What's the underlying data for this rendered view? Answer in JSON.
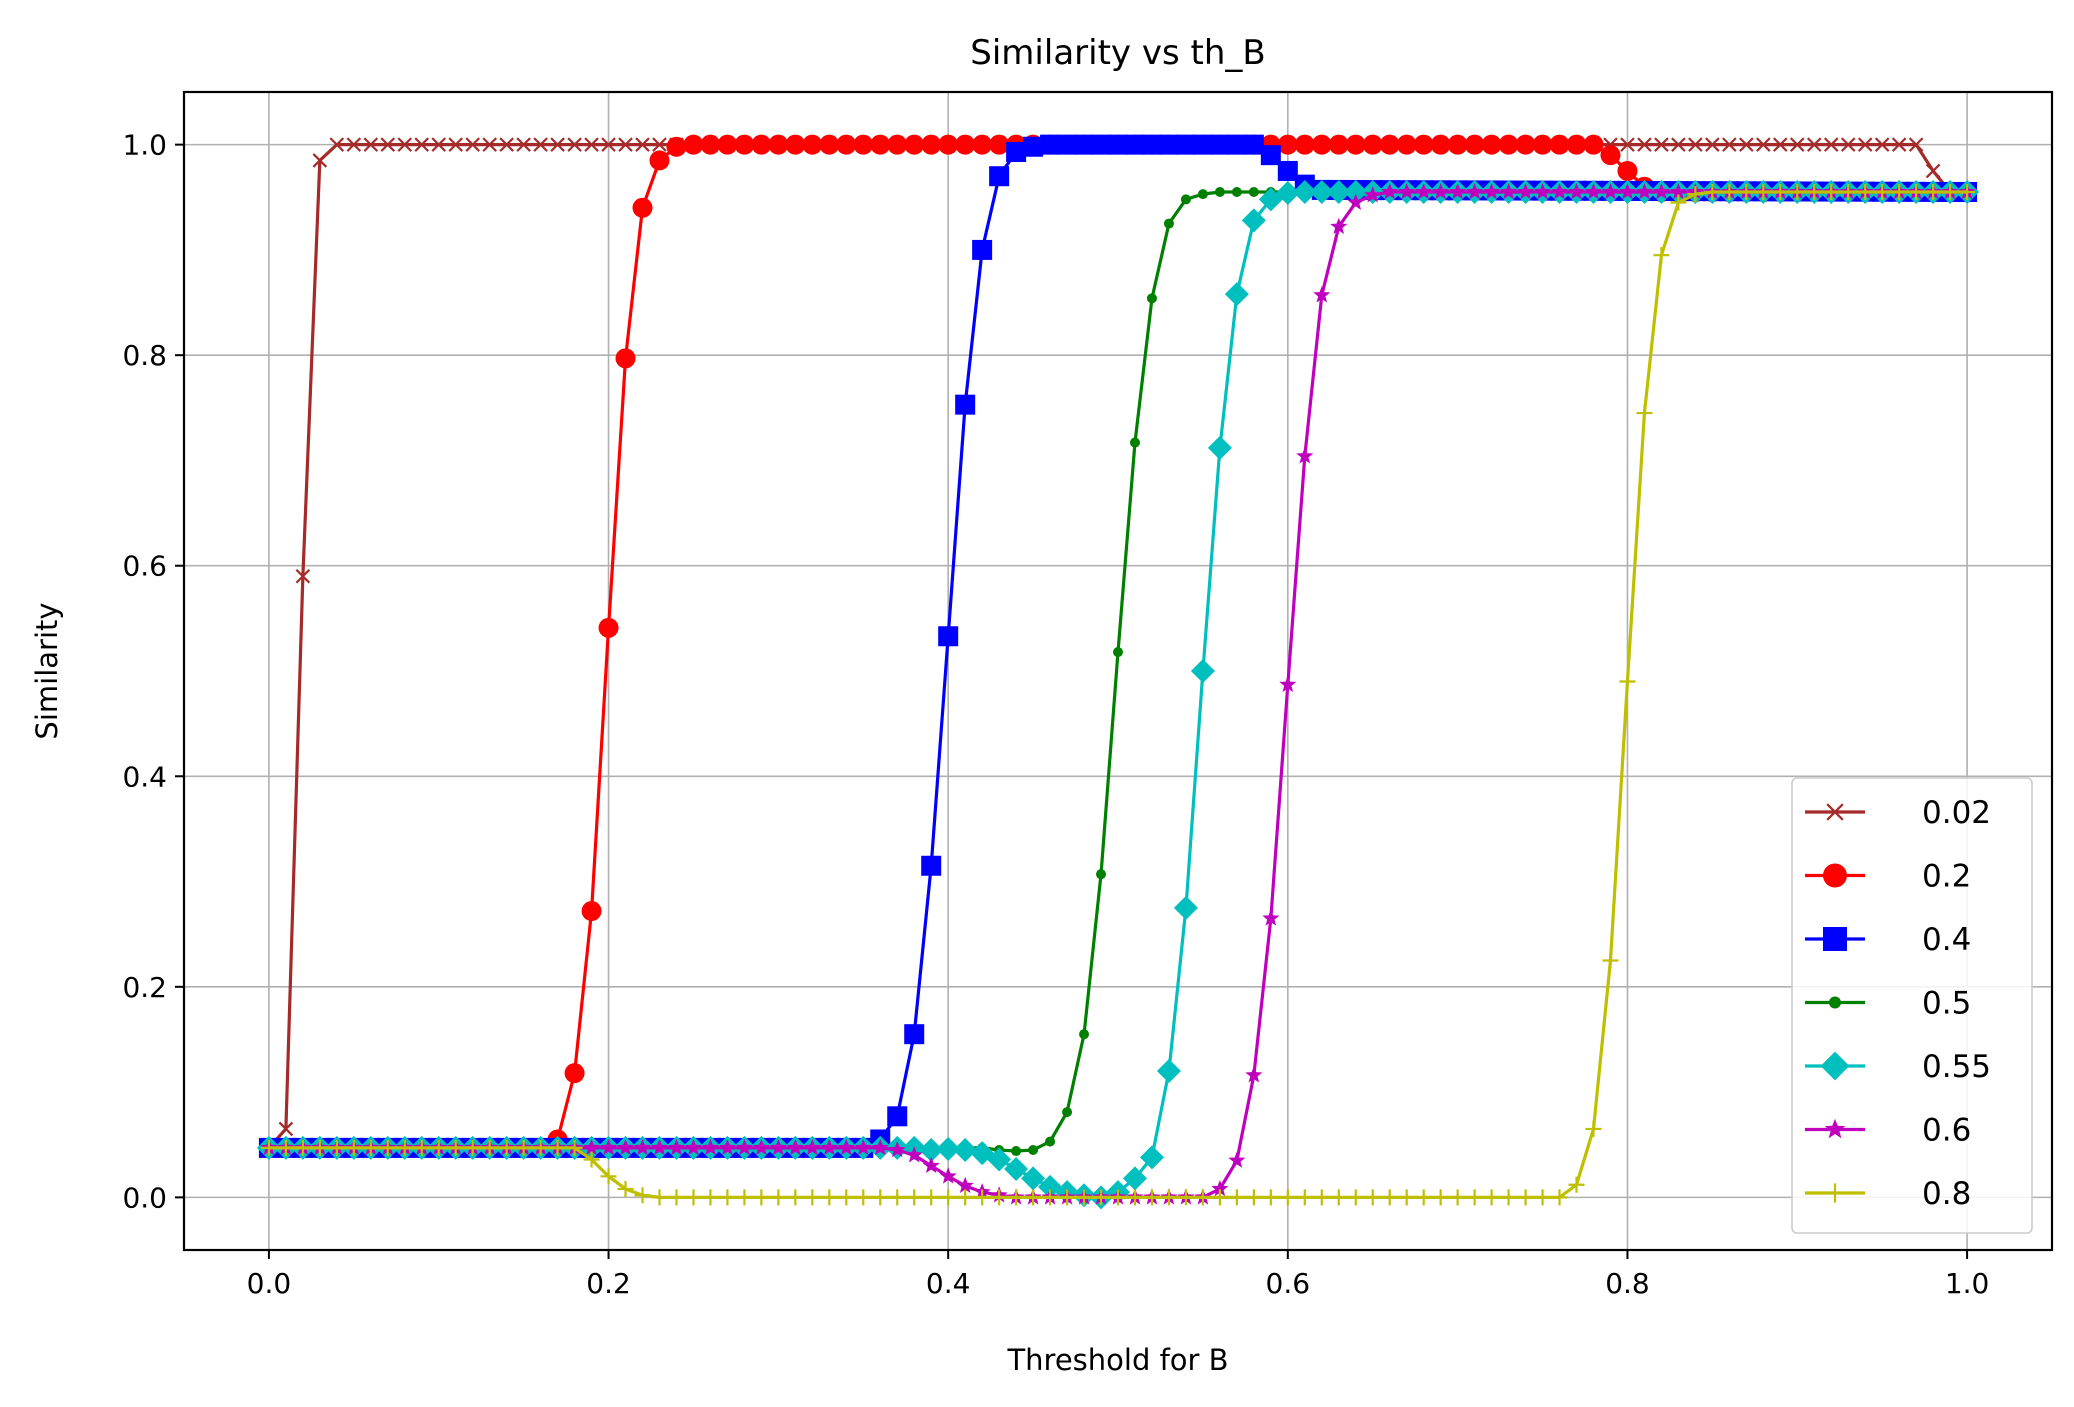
{
  "chart_data": {
    "type": "line",
    "title": "Similarity vs th_B",
    "xlabel": "Threshold for B",
    "ylabel": "Similarity",
    "xlim": [
      -0.05,
      1.05
    ],
    "ylim": [
      -0.05,
      1.05
    ],
    "xticks": [
      0.0,
      0.2,
      0.4,
      0.6,
      0.8,
      1.0
    ],
    "xtick_labels": [
      "0.0",
      "0.2",
      "0.4",
      "0.6",
      "0.8",
      "1.0"
    ],
    "yticks": [
      0.0,
      0.2,
      0.4,
      0.6,
      0.8,
      1.0
    ],
    "ytick_labels": [
      "0.0",
      "0.2",
      "0.4",
      "0.6",
      "0.8",
      "1.0"
    ],
    "grid": true,
    "legend_position": "lower-right",
    "x_range": [
      0,
      1
    ],
    "x_step": 0.01,
    "series": [
      {
        "name": "0.02",
        "color": "#a52a2a",
        "marker": "x",
        "points": [
          [
            0.0,
            0.047
          ],
          [
            0.01,
            0.065
          ],
          [
            0.02,
            0.59
          ],
          [
            0.03,
            0.985
          ],
          [
            0.04,
            1.0
          ],
          [
            0.97,
            1.0
          ],
          [
            0.98,
            0.975
          ],
          [
            0.99,
            0.955
          ],
          [
            1.0,
            0.955
          ]
        ]
      },
      {
        "name": "0.2",
        "color": "#ff0000",
        "marker": "circle",
        "points": [
          [
            0.0,
            0.047
          ],
          [
            0.16,
            0.047
          ],
          [
            0.17,
            0.055
          ],
          [
            0.18,
            0.118
          ],
          [
            0.19,
            0.272
          ],
          [
            0.2,
            0.541
          ],
          [
            0.21,
            0.797
          ],
          [
            0.22,
            0.94
          ],
          [
            0.23,
            0.985
          ],
          [
            0.24,
            0.998
          ],
          [
            0.25,
            1.0
          ],
          [
            0.78,
            1.0
          ],
          [
            0.79,
            0.99
          ],
          [
            0.8,
            0.975
          ],
          [
            0.81,
            0.96
          ],
          [
            0.82,
            0.955
          ],
          [
            1.0,
            0.955
          ]
        ]
      },
      {
        "name": "0.4",
        "color": "#0000ff",
        "marker": "square",
        "points": [
          [
            0.0,
            0.047
          ],
          [
            0.35,
            0.047
          ],
          [
            0.36,
            0.055
          ],
          [
            0.37,
            0.077
          ],
          [
            0.38,
            0.155
          ],
          [
            0.39,
            0.315
          ],
          [
            0.4,
            0.533
          ],
          [
            0.41,
            0.753
          ],
          [
            0.42,
            0.9
          ],
          [
            0.43,
            0.97
          ],
          [
            0.44,
            0.993
          ],
          [
            0.45,
            0.998
          ],
          [
            0.46,
            1.0
          ],
          [
            0.58,
            1.0
          ],
          [
            0.59,
            0.99
          ],
          [
            0.6,
            0.975
          ],
          [
            0.61,
            0.962
          ],
          [
            0.62,
            0.957
          ],
          [
            1.0,
            0.955
          ]
        ]
      },
      {
        "name": "0.5",
        "color": "#008000",
        "marker": "dot",
        "points": [
          [
            0.0,
            0.047
          ],
          [
            0.42,
            0.047
          ],
          [
            0.43,
            0.045
          ],
          [
            0.44,
            0.044
          ],
          [
            0.45,
            0.045
          ],
          [
            0.46,
            0.053
          ],
          [
            0.47,
            0.081
          ],
          [
            0.48,
            0.155
          ],
          [
            0.49,
            0.307
          ],
          [
            0.5,
            0.518
          ],
          [
            0.51,
            0.717
          ],
          [
            0.52,
            0.854
          ],
          [
            0.53,
            0.925
          ],
          [
            0.54,
            0.948
          ],
          [
            0.55,
            0.953
          ],
          [
            0.56,
            0.955
          ],
          [
            1.0,
            0.955
          ]
        ]
      },
      {
        "name": "0.55",
        "color": "#00bfbf",
        "marker": "diamond",
        "points": [
          [
            0.0,
            0.047
          ],
          [
            0.38,
            0.047
          ],
          [
            0.39,
            0.045
          ],
          [
            0.4,
            0.046
          ],
          [
            0.41,
            0.045
          ],
          [
            0.42,
            0.042
          ],
          [
            0.43,
            0.036
          ],
          [
            0.44,
            0.027
          ],
          [
            0.45,
            0.018
          ],
          [
            0.46,
            0.01
          ],
          [
            0.47,
            0.005
          ],
          [
            0.48,
            0.002
          ],
          [
            0.49,
            0.0
          ],
          [
            0.5,
            0.005
          ],
          [
            0.51,
            0.018
          ],
          [
            0.52,
            0.038
          ],
          [
            0.53,
            0.12
          ],
          [
            0.54,
            0.275
          ],
          [
            0.55,
            0.5
          ],
          [
            0.56,
            0.712
          ],
          [
            0.57,
            0.858
          ],
          [
            0.58,
            0.928
          ],
          [
            0.59,
            0.948
          ],
          [
            0.6,
            0.954
          ],
          [
            0.61,
            0.955
          ],
          [
            1.0,
            0.955
          ]
        ]
      },
      {
        "name": "0.6",
        "color": "#bf00bf",
        "marker": "star",
        "points": [
          [
            0.0,
            0.047
          ],
          [
            0.36,
            0.047
          ],
          [
            0.37,
            0.045
          ],
          [
            0.38,
            0.04
          ],
          [
            0.39,
            0.03
          ],
          [
            0.4,
            0.02
          ],
          [
            0.41,
            0.011
          ],
          [
            0.42,
            0.005
          ],
          [
            0.43,
            0.002
          ],
          [
            0.44,
            0.0
          ],
          [
            0.55,
            0.0
          ],
          [
            0.56,
            0.008
          ],
          [
            0.57,
            0.035
          ],
          [
            0.58,
            0.116
          ],
          [
            0.59,
            0.265
          ],
          [
            0.6,
            0.487
          ],
          [
            0.61,
            0.704
          ],
          [
            0.62,
            0.857
          ],
          [
            0.63,
            0.922
          ],
          [
            0.64,
            0.945
          ],
          [
            0.65,
            0.952
          ],
          [
            0.66,
            0.955
          ],
          [
            1.0,
            0.955
          ]
        ]
      },
      {
        "name": "0.8",
        "color": "#bfbf00",
        "marker": "plus",
        "points": [
          [
            0.0,
            0.047
          ],
          [
            0.18,
            0.047
          ],
          [
            0.19,
            0.036
          ],
          [
            0.2,
            0.02
          ],
          [
            0.21,
            0.008
          ],
          [
            0.22,
            0.002
          ],
          [
            0.23,
            0.0
          ],
          [
            0.76,
            0.0
          ],
          [
            0.77,
            0.012
          ],
          [
            0.78,
            0.065
          ],
          [
            0.79,
            0.225
          ],
          [
            0.8,
            0.49
          ],
          [
            0.81,
            0.745
          ],
          [
            0.82,
            0.895
          ],
          [
            0.83,
            0.945
          ],
          [
            0.84,
            0.953
          ],
          [
            0.85,
            0.955
          ],
          [
            1.0,
            0.955
          ]
        ]
      }
    ]
  }
}
